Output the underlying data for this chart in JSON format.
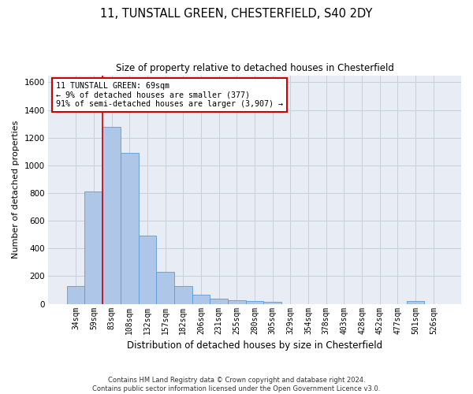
{
  "title_line1": "11, TUNSTALL GREEN, CHESTERFIELD, S40 2DY",
  "title_line2": "Size of property relative to detached houses in Chesterfield",
  "xlabel": "Distribution of detached houses by size in Chesterfield",
  "ylabel": "Number of detached properties",
  "footer_line1": "Contains HM Land Registry data © Crown copyright and database right 2024.",
  "footer_line2": "Contains public sector information licensed under the Open Government Licence v3.0.",
  "annotation_line1": "11 TUNSTALL GREEN: 69sqm",
  "annotation_line2": "← 9% of detached houses are smaller (377)",
  "annotation_line3": "91% of semi-detached houses are larger (3,907) →",
  "bar_categories": [
    "34sqm",
    "59sqm",
    "83sqm",
    "108sqm",
    "132sqm",
    "157sqm",
    "182sqm",
    "206sqm",
    "231sqm",
    "255sqm",
    "280sqm",
    "305sqm",
    "329sqm",
    "354sqm",
    "378sqm",
    "403sqm",
    "428sqm",
    "452sqm",
    "477sqm",
    "501sqm",
    "526sqm"
  ],
  "bar_values": [
    130,
    810,
    1280,
    1090,
    490,
    230,
    130,
    65,
    38,
    25,
    18,
    14,
    0,
    0,
    0,
    0,
    0,
    0,
    0,
    18,
    0
  ],
  "bar_color": "#aec6e8",
  "bar_edge_color": "#5b9bd5",
  "vline_color": "#cc0000",
  "annotation_box_edge_color": "#cc0000",
  "annotation_box_face_color": "white",
  "ylim": [
    0,
    1650
  ],
  "yticks": [
    0,
    200,
    400,
    600,
    800,
    1000,
    1200,
    1400,
    1600
  ],
  "grid_color": "#c8d0dc",
  "bg_color": "#e8edf5"
}
